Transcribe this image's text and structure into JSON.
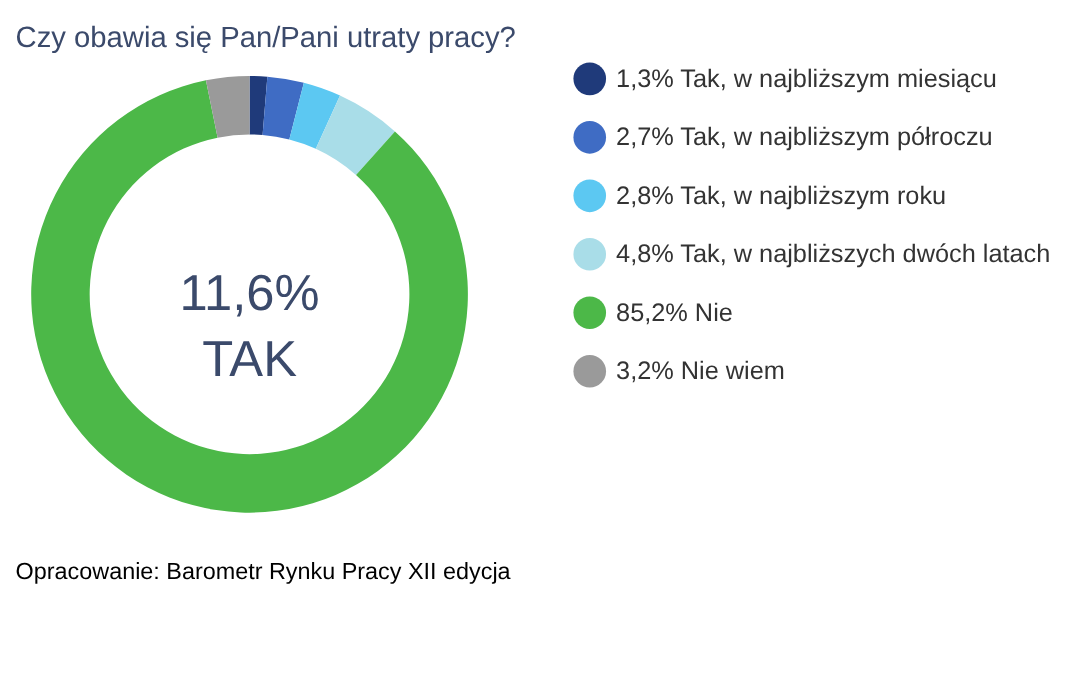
{
  "chart_data": {
    "type": "donut",
    "title": "Czy obawia się Pan/Pani utraty pracy?",
    "categories": [
      "Tak, w najbliższym miesiącu",
      "Tak, w najbliższym półroczu",
      "Tak, w najbliższym roku",
      "Tak, w najbliższych dwóch latach",
      "Nie",
      "Nie wiem"
    ],
    "values": [
      1.3,
      2.7,
      2.8,
      4.8,
      85.2,
      3.2
    ],
    "value_labels": [
      "1,3%",
      "2,7%",
      "2,8%",
      "4,8%",
      "85,2%",
      "3,2%"
    ],
    "colors": [
      "#1f3a7a",
      "#3f6cc4",
      "#5cc8f2",
      "#a9dde8",
      "#4cb848",
      "#9a9a9a"
    ],
    "legend": "right",
    "annotations": [
      "11,6%\nTAK",
      "Opracowanie: Barometr Rynku Pracy XII edycja"
    ]
  }
}
